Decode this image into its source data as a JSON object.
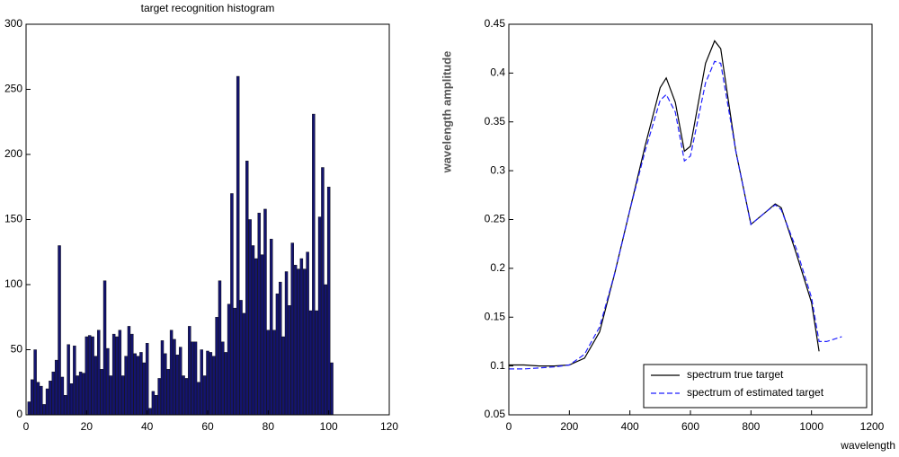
{
  "chart_data": [
    {
      "type": "bar",
      "title": "target recognition histogram",
      "color": "#14146e",
      "x": [
        1,
        2,
        3,
        4,
        5,
        6,
        7,
        8,
        9,
        10,
        11,
        12,
        13,
        14,
        15,
        16,
        17,
        18,
        19,
        20,
        21,
        22,
        23,
        24,
        25,
        26,
        27,
        28,
        29,
        30,
        31,
        32,
        33,
        34,
        35,
        36,
        37,
        38,
        39,
        40,
        41,
        42,
        43,
        44,
        45,
        46,
        47,
        48,
        49,
        50,
        51,
        52,
        53,
        54,
        55,
        56,
        57,
        58,
        59,
        60,
        61,
        62,
        63,
        64,
        65,
        66,
        67,
        68,
        69,
        70,
        71,
        72,
        73,
        74,
        75,
        76,
        77,
        78,
        79,
        80,
        81,
        82,
        83,
        84,
        85,
        86,
        87,
        88,
        89,
        90,
        91,
        92,
        93,
        94,
        95,
        96,
        97,
        98,
        99,
        100,
        101
      ],
      "values": [
        10,
        27,
        50,
        25,
        22,
        8,
        20,
        26,
        33,
        42,
        130,
        29,
        15,
        54,
        24,
        53,
        30,
        33,
        32,
        60,
        61,
        60,
        45,
        65,
        35,
        103,
        51,
        30,
        62,
        60,
        65,
        30,
        45,
        68,
        62,
        47,
        45,
        48,
        40,
        55,
        5,
        18,
        15,
        28,
        57,
        47,
        35,
        65,
        58,
        46,
        52,
        30,
        28,
        68,
        56,
        56,
        25,
        50,
        30,
        49,
        48,
        45,
        75,
        103,
        56,
        48,
        85,
        170,
        82,
        260,
        88,
        78,
        195,
        150,
        130,
        120,
        155,
        123,
        158,
        65,
        135,
        65,
        93,
        102,
        60,
        110,
        84,
        132,
        115,
        112,
        120,
        112,
        125,
        80,
        231,
        80,
        152,
        190,
        100,
        175,
        40
      ],
      "xlim": [
        0,
        120
      ],
      "xticks": [
        0,
        20,
        40,
        60,
        80,
        100,
        120
      ],
      "ylim": [
        0,
        300
      ],
      "yticks": [
        0,
        50,
        100,
        150,
        200,
        250,
        300
      ]
    },
    {
      "type": "line",
      "xlabel": "wavelength",
      "ylabel": "wavelength amplitude",
      "legend": "lower right",
      "x": [
        0,
        50,
        100,
        150,
        200,
        250,
        300,
        350,
        400,
        450,
        500,
        520,
        550,
        580,
        600,
        650,
        680,
        700,
        750,
        800,
        850,
        880,
        900,
        950,
        1000,
        1025,
        1050,
        1100
      ],
      "series": [
        {
          "name": "spectrum true target",
          "color": "#000000",
          "dash": false,
          "values": [
            0.101,
            0.101,
            0.1,
            0.1,
            0.101,
            0.108,
            0.135,
            0.195,
            0.26,
            0.325,
            0.385,
            0.395,
            0.37,
            0.32,
            0.325,
            0.41,
            0.433,
            0.425,
            0.32,
            0.245,
            0.258,
            0.266,
            0.262,
            0.215,
            0.165,
            0.115,
            null,
            null
          ]
        },
        {
          "name": "spectrum of estimated target",
          "color": "#1f1fff",
          "dash": true,
          "values": [
            0.097,
            0.097,
            0.098,
            0.099,
            0.101,
            0.112,
            0.14,
            0.195,
            0.26,
            0.32,
            0.372,
            0.378,
            0.36,
            0.31,
            0.315,
            0.39,
            0.412,
            0.41,
            0.32,
            0.245,
            0.258,
            0.265,
            0.26,
            0.22,
            0.17,
            0.125,
            0.125,
            0.13
          ]
        }
      ],
      "xlim": [
        0,
        1200
      ],
      "xticks": [
        0,
        200,
        400,
        600,
        800,
        1000,
        1200
      ],
      "ylim": [
        0.05,
        0.45
      ],
      "yticks": [
        0.05,
        0.1,
        0.15,
        0.2,
        0.25,
        0.3,
        0.35,
        0.4,
        0.45
      ]
    }
  ]
}
